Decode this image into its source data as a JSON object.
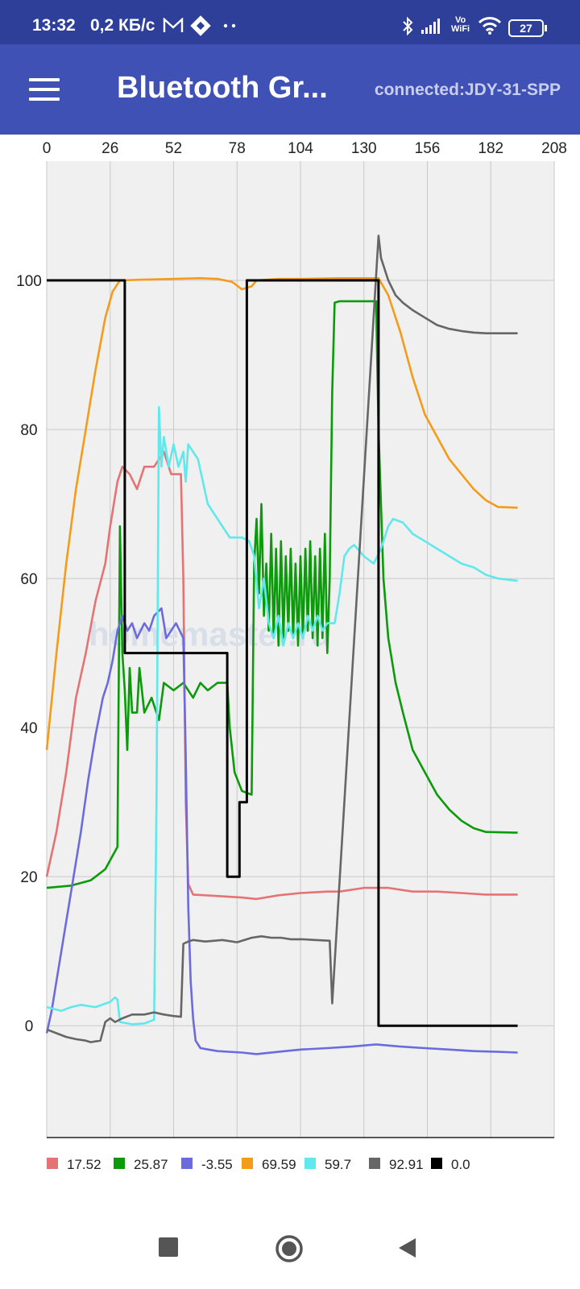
{
  "status_bar": {
    "time": "13:32",
    "speed": "0,2 КБ/с",
    "wifi_label_top": "Vo",
    "wifi_label_bottom": "WiFi",
    "battery": "27"
  },
  "app_bar": {
    "title": "Bluetooth Gr...",
    "connection": "connected:JDY-31-SPP"
  },
  "watermark": "homemaster.ru",
  "chart_data": {
    "type": "line",
    "x_ticks": [
      "0",
      "26",
      "52",
      "78",
      "104",
      "130",
      "156",
      "182",
      "208"
    ],
    "y_ticks": [
      "0",
      "20",
      "40",
      "60",
      "80",
      "100"
    ],
    "xlim": [
      0,
      208
    ],
    "ylim": [
      -15,
      116
    ],
    "grid": true,
    "legend_position": "bottom",
    "series": [
      {
        "name": "17.52",
        "color": "#e57373",
        "points": [
          [
            0,
            20
          ],
          [
            4,
            26
          ],
          [
            8,
            34
          ],
          [
            12,
            44
          ],
          [
            16,
            50
          ],
          [
            20,
            57
          ],
          [
            24,
            62
          ],
          [
            26,
            67
          ],
          [
            29,
            73
          ],
          [
            31,
            75
          ],
          [
            34,
            74
          ],
          [
            37,
            72
          ],
          [
            40,
            75
          ],
          [
            44,
            75
          ],
          [
            48,
            77
          ],
          [
            51,
            74
          ],
          [
            55,
            74
          ],
          [
            56,
            60
          ],
          [
            57,
            30
          ],
          [
            58,
            19
          ],
          [
            60,
            17.6
          ],
          [
            70,
            17.4
          ],
          [
            80,
            17.2
          ],
          [
            86,
            17
          ],
          [
            95,
            17.5
          ],
          [
            104,
            17.8
          ],
          [
            115,
            18
          ],
          [
            120,
            18
          ],
          [
            130,
            18.5
          ],
          [
            140,
            18.5
          ],
          [
            150,
            18
          ],
          [
            160,
            18
          ],
          [
            170,
            17.8
          ],
          [
            180,
            17.6
          ],
          [
            193,
            17.6
          ]
        ]
      },
      {
        "name": "25.87",
        "color": "#0a9a0a",
        "points": [
          [
            0,
            18.5
          ],
          [
            10,
            18.8
          ],
          [
            18,
            19.5
          ],
          [
            24,
            21
          ],
          [
            29,
            24
          ],
          [
            30,
            67
          ],
          [
            31,
            50
          ],
          [
            32,
            45
          ],
          [
            33,
            37
          ],
          [
            34,
            48
          ],
          [
            35,
            42
          ],
          [
            37,
            42
          ],
          [
            38,
            48
          ],
          [
            40,
            42
          ],
          [
            43,
            44
          ],
          [
            46,
            41
          ],
          [
            48,
            46
          ],
          [
            52,
            45
          ],
          [
            56,
            46
          ],
          [
            60,
            44
          ],
          [
            63,
            46
          ],
          [
            66,
            45
          ],
          [
            70,
            46
          ],
          [
            74,
            46
          ],
          [
            75,
            40
          ],
          [
            77,
            34
          ],
          [
            80,
            31.5
          ],
          [
            84,
            31
          ],
          [
            85,
            62
          ],
          [
            86,
            68
          ],
          [
            87,
            58
          ],
          [
            88,
            70
          ],
          [
            89,
            55
          ],
          [
            90,
            62
          ],
          [
            91,
            53
          ],
          [
            92,
            66
          ],
          [
            93,
            52
          ],
          [
            94,
            64
          ],
          [
            95,
            51
          ],
          [
            96,
            65
          ],
          [
            97,
            52
          ],
          [
            98,
            63
          ],
          [
            99,
            53
          ],
          [
            100,
            64
          ],
          [
            101,
            52
          ],
          [
            102,
            62
          ],
          [
            103,
            51
          ],
          [
            104,
            63
          ],
          [
            105,
            52
          ],
          [
            106,
            64
          ],
          [
            107,
            53
          ],
          [
            108,
            65
          ],
          [
            109,
            52
          ],
          [
            110,
            63
          ],
          [
            111,
            51
          ],
          [
            112,
            64
          ],
          [
            113,
            52
          ],
          [
            114,
            66
          ],
          [
            115,
            50
          ],
          [
            116,
            60
          ],
          [
            117,
            85
          ],
          [
            118,
            97
          ],
          [
            120,
            97.2
          ],
          [
            135,
            97.2
          ],
          [
            136,
            80
          ],
          [
            138,
            60
          ],
          [
            140,
            52
          ],
          [
            143,
            46
          ],
          [
            146,
            42
          ],
          [
            150,
            37
          ],
          [
            155,
            34
          ],
          [
            160,
            31
          ],
          [
            165,
            29
          ],
          [
            170,
            27.5
          ],
          [
            175,
            26.5
          ],
          [
            180,
            26
          ],
          [
            193,
            25.9
          ]
        ]
      },
      {
        "name": "-3.55",
        "color": "#6b6bde",
        "points": [
          [
            0,
            -1
          ],
          [
            2,
            2
          ],
          [
            4,
            6
          ],
          [
            7,
            12
          ],
          [
            10,
            18
          ],
          [
            14,
            26
          ],
          [
            17,
            33
          ],
          [
            20,
            39
          ],
          [
            23,
            44
          ],
          [
            25,
            46
          ],
          [
            27,
            49
          ],
          [
            28,
            51
          ],
          [
            29,
            53
          ],
          [
            31,
            55
          ],
          [
            33,
            53
          ],
          [
            35,
            54
          ],
          [
            37,
            52
          ],
          [
            40,
            54
          ],
          [
            42,
            53
          ],
          [
            44,
            55
          ],
          [
            47,
            56
          ],
          [
            49,
            52
          ],
          [
            53,
            54
          ],
          [
            56,
            52
          ],
          [
            57,
            36
          ],
          [
            58,
            16
          ],
          [
            59,
            6
          ],
          [
            60,
            1
          ],
          [
            61,
            -2
          ],
          [
            63,
            -3
          ],
          [
            70,
            -3.4
          ],
          [
            80,
            -3.6
          ],
          [
            86,
            -3.8
          ],
          [
            95,
            -3.5
          ],
          [
            104,
            -3.2
          ],
          [
            115,
            -3
          ],
          [
            125,
            -2.8
          ],
          [
            135,
            -2.5
          ],
          [
            145,
            -2.8
          ],
          [
            155,
            -3
          ],
          [
            165,
            -3.2
          ],
          [
            175,
            -3.4
          ],
          [
            185,
            -3.5
          ],
          [
            193,
            -3.6
          ]
        ]
      },
      {
        "name": "69.59",
        "color": "#f59b1a",
        "points": [
          [
            0,
            37
          ],
          [
            4,
            50
          ],
          [
            8,
            62
          ],
          [
            12,
            72
          ],
          [
            16,
            80
          ],
          [
            20,
            88
          ],
          [
            24,
            95
          ],
          [
            27,
            98.5
          ],
          [
            30,
            100
          ],
          [
            40,
            100.1
          ],
          [
            52,
            100.2
          ],
          [
            63,
            100.3
          ],
          [
            70,
            100.2
          ],
          [
            76,
            99.8
          ],
          [
            80,
            98.8
          ],
          [
            84,
            99.2
          ],
          [
            86,
            100
          ],
          [
            95,
            100.2
          ],
          [
            104,
            100.2
          ],
          [
            120,
            100.3
          ],
          [
            136,
            100.3
          ],
          [
            140,
            98
          ],
          [
            145,
            93
          ],
          [
            150,
            87
          ],
          [
            155,
            82
          ],
          [
            160,
            79
          ],
          [
            165,
            76
          ],
          [
            170,
            74
          ],
          [
            175,
            72
          ],
          [
            180,
            70.5
          ],
          [
            185,
            69.6
          ],
          [
            193,
            69.5
          ]
        ]
      },
      {
        "name": "59.7",
        "color": "#60e8ec",
        "points": [
          [
            0,
            2.5
          ],
          [
            6,
            2
          ],
          [
            10,
            2.5
          ],
          [
            14,
            2.8
          ],
          [
            20,
            2.5
          ],
          [
            26,
            3.2
          ],
          [
            28,
            3.8
          ],
          [
            29,
            3.5
          ],
          [
            30,
            0.5
          ],
          [
            35,
            0.2
          ],
          [
            40,
            0.3
          ],
          [
            44,
            0.8
          ],
          [
            45,
            30
          ],
          [
            46,
            83
          ],
          [
            47,
            75
          ],
          [
            48,
            79
          ],
          [
            50,
            75
          ],
          [
            52,
            78
          ],
          [
            54,
            75
          ],
          [
            56,
            77
          ],
          [
            57,
            73
          ],
          [
            58,
            78
          ],
          [
            62,
            76
          ],
          [
            66,
            70
          ],
          [
            70,
            68
          ],
          [
            75,
            65.5
          ],
          [
            80,
            65.5
          ],
          [
            83,
            65
          ],
          [
            85,
            63
          ],
          [
            87,
            56
          ],
          [
            89,
            60
          ],
          [
            91,
            54
          ],
          [
            93,
            52
          ],
          [
            95,
            55
          ],
          [
            97,
            51
          ],
          [
            99,
            54
          ],
          [
            101,
            52
          ],
          [
            103,
            54
          ],
          [
            105,
            52
          ],
          [
            107,
            55
          ],
          [
            109,
            53
          ],
          [
            111,
            55
          ],
          [
            113,
            53
          ],
          [
            115,
            54
          ],
          [
            118,
            54
          ],
          [
            120,
            58
          ],
          [
            122,
            63
          ],
          [
            124,
            64
          ],
          [
            126,
            64.5
          ],
          [
            130,
            63
          ],
          [
            134,
            62
          ],
          [
            137,
            64
          ],
          [
            140,
            67
          ],
          [
            142,
            68
          ],
          [
            146,
            67.5
          ],
          [
            150,
            66
          ],
          [
            155,
            65
          ],
          [
            160,
            64
          ],
          [
            165,
            63
          ],
          [
            170,
            62
          ],
          [
            175,
            61.5
          ],
          [
            180,
            60.5
          ],
          [
            185,
            60
          ],
          [
            193,
            59.7
          ]
        ]
      },
      {
        "name": "92.91",
        "color": "#666666",
        "points": [
          [
            0,
            -0.5
          ],
          [
            4,
            -1
          ],
          [
            8,
            -1.5
          ],
          [
            12,
            -1.8
          ],
          [
            16,
            -2
          ],
          [
            18,
            -2.2
          ],
          [
            22,
            -2
          ],
          [
            24,
            0.5
          ],
          [
            26,
            1
          ],
          [
            28,
            0.5
          ],
          [
            31,
            1
          ],
          [
            35,
            1.5
          ],
          [
            40,
            1.5
          ],
          [
            44,
            1.8
          ],
          [
            48,
            1.5
          ],
          [
            52,
            1.3
          ],
          [
            55,
            1.2
          ],
          [
            56,
            11
          ],
          [
            58,
            11.3
          ],
          [
            60,
            11.5
          ],
          [
            65,
            11.3
          ],
          [
            72,
            11.5
          ],
          [
            78,
            11.2
          ],
          [
            84,
            11.8
          ],
          [
            88,
            12
          ],
          [
            92,
            11.8
          ],
          [
            96,
            11.8
          ],
          [
            100,
            11.6
          ],
          [
            105,
            11.6
          ],
          [
            110,
            11.5
          ],
          [
            116,
            11.4
          ],
          [
            117,
            3
          ],
          [
            136,
            106
          ],
          [
            137,
            103
          ],
          [
            140,
            100
          ],
          [
            143,
            98
          ],
          [
            146,
            97
          ],
          [
            150,
            96
          ],
          [
            155,
            95
          ],
          [
            160,
            94
          ],
          [
            165,
            93.5
          ],
          [
            170,
            93.2
          ],
          [
            175,
            93
          ],
          [
            180,
            92.9
          ],
          [
            193,
            92.9
          ]
        ]
      },
      {
        "name": "0.0",
        "color": "#000000",
        "step": true,
        "points": [
          [
            0,
            100
          ],
          [
            32,
            100
          ],
          [
            32,
            50
          ],
          [
            74,
            50
          ],
          [
            74,
            20
          ],
          [
            79,
            20
          ],
          [
            79,
            30
          ],
          [
            82,
            30
          ],
          [
            82,
            100
          ],
          [
            136,
            100
          ],
          [
            136,
            0
          ],
          [
            193,
            0
          ]
        ]
      }
    ]
  },
  "nav_bar": {
    "recents_icon": "square-icon",
    "home_icon": "circle-icon",
    "back_icon": "triangle-back-icon"
  }
}
